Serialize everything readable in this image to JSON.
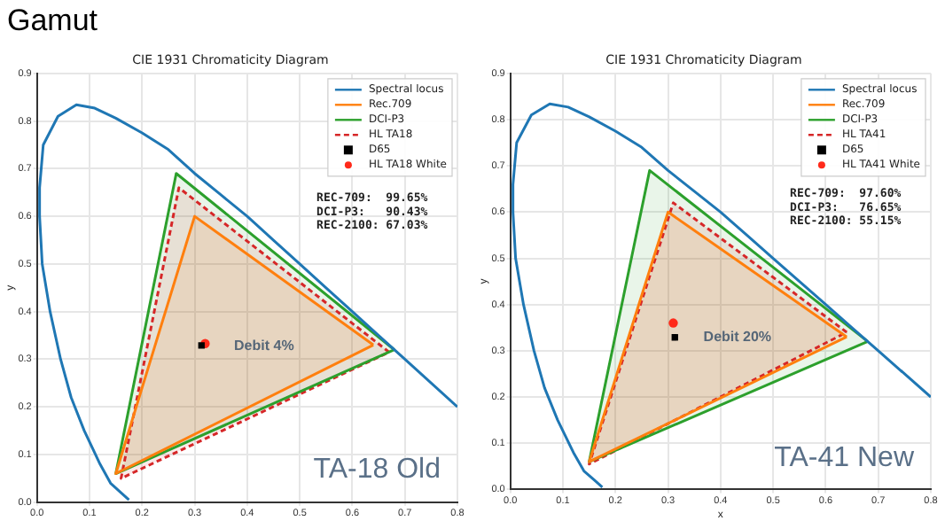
{
  "chart_data": [
    {
      "type": "line",
      "title": "Gamut",
      "subtitle": "CIE 1931 Chromaticity Diagram",
      "ylabel": "y",
      "xlim": [
        0,
        0.8
      ],
      "ylim": [
        0,
        0.9
      ],
      "xticks": [
        {
          "value": 0,
          "label": "0.0"
        },
        {
          "value": 0.1,
          "label": "0.1"
        },
        {
          "value": 0.2,
          "label": "0.2"
        },
        {
          "value": 0.3,
          "label": "0.3"
        },
        {
          "value": 0.4,
          "label": "0.4"
        },
        {
          "value": 0.5,
          "label": "0.5"
        },
        {
          "value": 0.6,
          "label": "0.6"
        },
        {
          "value": 0.7,
          "label": "0.7"
        },
        {
          "value": 0.8,
          "label": "0.8"
        }
      ],
      "yticks": [
        {
          "value": 0,
          "label": "0.0"
        },
        {
          "value": 0.1,
          "label": "0.1"
        },
        {
          "value": 0.2,
          "label": "0.2"
        },
        {
          "value": 0.3,
          "label": "0.3"
        },
        {
          "value": 0.4,
          "label": "0.4"
        },
        {
          "value": 0.5,
          "label": "0.5"
        },
        {
          "value": 0.6,
          "label": "0.6"
        },
        {
          "value": 0.7,
          "label": "0.7"
        },
        {
          "value": 0.8,
          "label": "0.8"
        },
        {
          "value": 0.9,
          "label": "0.9"
        }
      ],
      "grid": true,
      "legend": "top right",
      "series": [
        {
          "name": "Spectral locus",
          "type": "line",
          "color": "#1f77b4",
          "x": [
            0.175,
            0.16,
            0.14,
            0.12,
            0.09,
            0.065,
            0.045,
            0.025,
            0.01,
            0.005,
            0.005,
            0.012,
            0.04,
            0.075,
            0.11,
            0.15,
            0.2,
            0.25,
            0.3,
            0.35,
            0.4,
            0.45,
            0.5,
            0.55,
            0.6,
            0.65,
            0.7,
            0.8
          ],
          "values": [
            0.005,
            0.02,
            0.04,
            0.08,
            0.15,
            0.22,
            0.3,
            0.4,
            0.5,
            0.6,
            0.66,
            0.75,
            0.81,
            0.834,
            0.827,
            0.806,
            0.775,
            0.74,
            0.69,
            0.645,
            0.6,
            0.55,
            0.5,
            0.45,
            0.4,
            0.35,
            0.3,
            0.2
          ]
        },
        {
          "name": "Rec.709",
          "type": "area",
          "color": "#ff7f0e",
          "x": [
            0.64,
            0.3,
            0.15,
            0.64
          ],
          "values": [
            0.33,
            0.6,
            0.06,
            0.33
          ]
        },
        {
          "name": "DCI-P3",
          "type": "area",
          "color": "#2ca02c",
          "x": [
            0.68,
            0.265,
            0.15,
            0.68
          ],
          "values": [
            0.32,
            0.69,
            0.06,
            0.32
          ]
        },
        {
          "name": "HL TA18",
          "type": "area",
          "color": "#d62728",
          "line_style": "dashed",
          "x": [
            0.67,
            0.27,
            0.16,
            0.67
          ],
          "values": [
            0.315,
            0.66,
            0.05,
            0.315
          ]
        },
        {
          "name": "D65",
          "type": "scatter",
          "color": "#000000",
          "marker": "square",
          "x": [
            0.313
          ],
          "values": [
            0.329
          ]
        },
        {
          "name": "HL TA18 White",
          "type": "scatter",
          "color": "#ff2a1a",
          "marker": "circle",
          "x": [
            0.32
          ],
          "values": [
            0.333
          ]
        }
      ],
      "annotations": [
        "REC-709:  99.65%",
        "DCI-P3:   90.43%",
        "REC-2100: 67.03%",
        "Debit 4%",
        "TA-18 Old"
      ]
    },
    {
      "type": "line",
      "subtitle": "CIE 1931 Chromaticity Diagram",
      "xlabel": "x",
      "ylabel": "y",
      "xlim": [
        0,
        0.8
      ],
      "ylim": [
        0,
        0.9
      ],
      "xticks": [
        {
          "value": 0,
          "label": "0.0"
        },
        {
          "value": 0.1,
          "label": "0.1"
        },
        {
          "value": 0.2,
          "label": "0.2"
        },
        {
          "value": 0.3,
          "label": "0.3"
        },
        {
          "value": 0.4,
          "label": "0.4"
        },
        {
          "value": 0.5,
          "label": "0.5"
        },
        {
          "value": 0.6,
          "label": "0.6"
        },
        {
          "value": 0.7,
          "label": "0.7"
        },
        {
          "value": 0.8,
          "label": "0.8"
        }
      ],
      "yticks": [
        {
          "value": 0,
          "label": "0.0"
        },
        {
          "value": 0.1,
          "label": "0.1"
        },
        {
          "value": 0.2,
          "label": "0.2"
        },
        {
          "value": 0.3,
          "label": "0.3"
        },
        {
          "value": 0.4,
          "label": "0.4"
        },
        {
          "value": 0.5,
          "label": "0.5"
        },
        {
          "value": 0.6,
          "label": "0.6"
        },
        {
          "value": 0.7,
          "label": "0.7"
        },
        {
          "value": 0.8,
          "label": "0.8"
        },
        {
          "value": 0.9,
          "label": "0.9"
        }
      ],
      "grid": true,
      "legend": "top right",
      "series": [
        {
          "name": "Spectral locus",
          "type": "line",
          "color": "#1f77b4",
          "x": [
            0.175,
            0.16,
            0.14,
            0.12,
            0.09,
            0.065,
            0.045,
            0.025,
            0.01,
            0.005,
            0.005,
            0.012,
            0.04,
            0.075,
            0.11,
            0.15,
            0.2,
            0.25,
            0.3,
            0.35,
            0.4,
            0.45,
            0.5,
            0.55,
            0.6,
            0.65,
            0.7,
            0.8
          ],
          "values": [
            0.005,
            0.02,
            0.04,
            0.08,
            0.15,
            0.22,
            0.3,
            0.4,
            0.5,
            0.6,
            0.66,
            0.75,
            0.81,
            0.834,
            0.827,
            0.806,
            0.775,
            0.74,
            0.69,
            0.645,
            0.6,
            0.55,
            0.5,
            0.45,
            0.4,
            0.35,
            0.3,
            0.2
          ]
        },
        {
          "name": "Rec.709",
          "type": "area",
          "color": "#ff7f0e",
          "x": [
            0.64,
            0.3,
            0.15,
            0.64
          ],
          "values": [
            0.33,
            0.6,
            0.06,
            0.33
          ]
        },
        {
          "name": "DCI-P3",
          "type": "area",
          "color": "#2ca02c",
          "x": [
            0.68,
            0.265,
            0.15,
            0.68
          ],
          "values": [
            0.32,
            0.69,
            0.06,
            0.32
          ]
        },
        {
          "name": "HL TA41",
          "type": "area",
          "color": "#d62728",
          "line_style": "dashed",
          "x": [
            0.64,
            0.31,
            0.15,
            0.64
          ],
          "values": [
            0.34,
            0.62,
            0.055,
            0.34
          ]
        },
        {
          "name": "D65",
          "type": "scatter",
          "color": "#000000",
          "marker": "square",
          "x": [
            0.313
          ],
          "values": [
            0.329
          ]
        },
        {
          "name": "HL TA41 White",
          "type": "scatter",
          "color": "#ff2a1a",
          "marker": "circle",
          "x": [
            0.31
          ],
          "values": [
            0.36
          ]
        }
      ],
      "annotations": [
        "REC-709:  97.60%",
        "DCI-P3:   76.65%",
        "REC-2100: 55.15%",
        "Debit 20%",
        "TA-41 New"
      ]
    }
  ]
}
